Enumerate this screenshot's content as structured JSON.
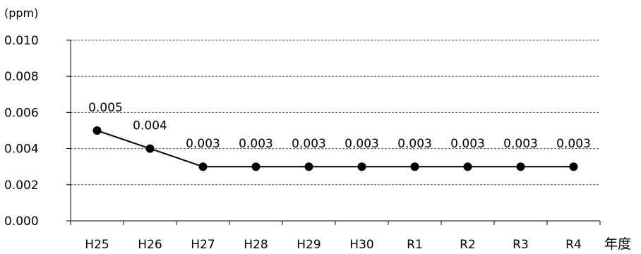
{
  "chart_data": {
    "type": "line",
    "title": "",
    "ylabel": "(ppm)",
    "xlabel": "年度",
    "categories": [
      "H25",
      "H26",
      "H27",
      "H28",
      "H29",
      "H30",
      "R1",
      "R2",
      "R3",
      "R4"
    ],
    "series": [
      {
        "values": [
          0.005,
          0.004,
          0.003,
          0.003,
          0.003,
          0.003,
          0.003,
          0.003,
          0.003,
          0.003
        ],
        "labels": [
          "0.005",
          "0.004",
          "0.003",
          "0.003",
          "0.003",
          "0.003",
          "0.003",
          "0.003",
          "0.003",
          "0.003"
        ]
      }
    ],
    "ylim": [
      0,
      0.01
    ],
    "yticks": [
      "0.000",
      "0.002",
      "0.004",
      "0.006",
      "0.008",
      "0.010"
    ],
    "grid": "horizontal dashed",
    "legend": "none",
    "colors": {
      "line": "#000000",
      "marker": "#000000",
      "grid": "#555555"
    }
  }
}
